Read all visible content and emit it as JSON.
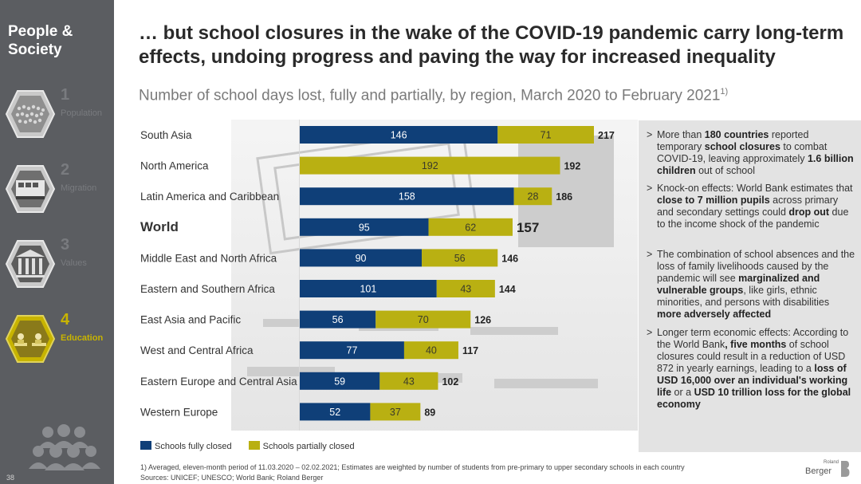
{
  "sidebar": {
    "title": "People & Society",
    "items": [
      {
        "num": "1",
        "label": "Population",
        "icon": "crowd-icon"
      },
      {
        "num": "2",
        "label": "Migration",
        "icon": "bus-icon"
      },
      {
        "num": "3",
        "label": "Values",
        "icon": "columns-icon"
      },
      {
        "num": "4",
        "label": "Education",
        "icon": "classroom-icon"
      }
    ],
    "page_number": "38"
  },
  "headline": "… but school closures in the wake of the COVID-19 pandemic carry long-term effects, undoing progress and paving the way for increased inequality",
  "subtitle": "Number of school days lost, fully and partially, by region, March 2020 to February 2021",
  "subtitle_note": "1)",
  "chart_data": {
    "type": "bar",
    "orientation": "horizontal",
    "stacked": true,
    "categories": [
      "South Asia",
      "North America",
      "Latin America and Caribbean",
      "World",
      "Middle East and North Africa",
      "Eastern and Southern Africa",
      "East Asia and Pacific",
      "West and Central Africa",
      "Eastern Europe and Central Asia",
      "Western Europe"
    ],
    "series": [
      {
        "name": "Schools fully closed",
        "color": "#0f3f78",
        "values": [
          146,
          0,
          158,
          95,
          90,
          101,
          56,
          77,
          59,
          52
        ]
      },
      {
        "name": "Schools partially closed",
        "color": "#b9b012",
        "values": [
          71,
          192,
          28,
          62,
          56,
          43,
          70,
          40,
          43,
          37
        ]
      }
    ],
    "totals": [
      217,
      192,
      186,
      157,
      146,
      144,
      126,
      117,
      102,
      89
    ],
    "highlight_category": "World",
    "xlim": [
      0,
      217
    ],
    "grid": false,
    "legend_position": "bottom-left"
  },
  "bullets": [
    {
      "parts": [
        [
          "More than ",
          false
        ],
        [
          "180 countries",
          true
        ],
        [
          " reported temporary ",
          false
        ],
        [
          "school closures",
          true
        ],
        [
          " to combat COVID-19, leaving approximately ",
          false
        ],
        [
          "1.6 billion children",
          true
        ],
        [
          " out of school",
          false
        ]
      ]
    },
    {
      "parts": [
        [
          "Knock-on effects: World Bank estimates that ",
          false
        ],
        [
          "close to 7 million pupils",
          true
        ],
        [
          " across primary and secondary settings could ",
          false
        ],
        [
          "drop out",
          true
        ],
        [
          " due to the income shock of the pandemic",
          false
        ]
      ]
    },
    {
      "parts": [
        [
          "The combination of school absences and the loss of family livelihoods caused by the pandemic will see ",
          false
        ],
        [
          "marginalized and vulnerable groups",
          true
        ],
        [
          ", like girls, ethnic minorities, and persons with disabilities ",
          false
        ],
        [
          "more adversely affected",
          true
        ]
      ]
    },
    {
      "parts": [
        [
          "Longer term economic effects: According to the World Bank",
          false
        ],
        [
          ", five months",
          true
        ],
        [
          " of school closures could result in a reduction of USD 872 in yearly earnings, leading to a ",
          false
        ],
        [
          "loss of USD 16,000 over an individual's working life",
          true
        ],
        [
          " or a ",
          false
        ],
        [
          "USD 10 trillion loss for the global economy",
          true
        ]
      ]
    }
  ],
  "footnote": "1) Averaged, eleven-month period of 11.03.2020 – 02.02.2021; Estimates are weighted by number of students from pre-primary to upper secondary schools in each country",
  "sources": "Sources: UNICEF; UNESCO; World Bank; Roland Berger",
  "logo": {
    "small": "Roland",
    "main": "Berger"
  }
}
